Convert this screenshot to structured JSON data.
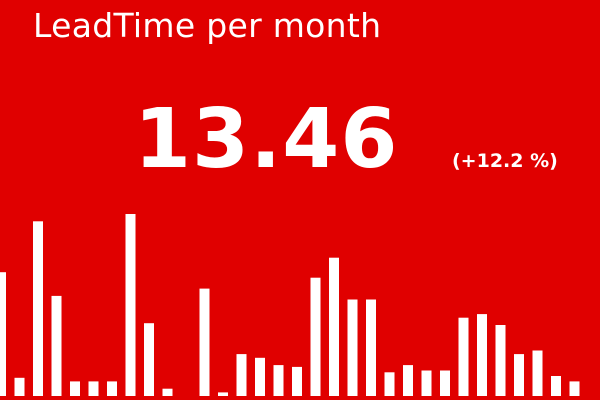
{
  "colors": {
    "background": "#e00000",
    "foreground": "#ffffff"
  },
  "card": {
    "title": "LeadTime per month",
    "value": "13.46",
    "delta": "(+12.2 %)"
  },
  "chart_data": {
    "type": "bar",
    "title": "",
    "xlabel": "",
    "ylabel": "",
    "ylim": [
      0,
      100
    ],
    "grid": false,
    "legend": "none",
    "values": [
      68,
      10,
      96,
      55,
      8,
      8,
      8,
      100,
      40,
      4,
      0,
      59,
      2,
      23,
      21,
      17,
      16,
      65,
      76,
      53,
      53,
      13,
      17,
      14,
      14,
      43,
      45,
      39,
      23,
      25,
      11,
      8
    ]
  }
}
